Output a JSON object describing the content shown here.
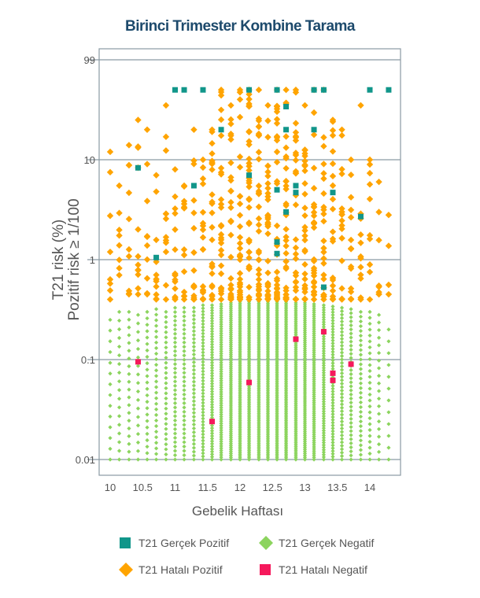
{
  "chart_data": {
    "type": "scatter",
    "title": "Birinci Trimester Kombine Tarama",
    "xlabel": "Gebelik Haftası",
    "ylabel": [
      "T21 risk (%)",
      "Pozitif risk ≥ 1/100"
    ],
    "y_scale": "log",
    "xlim": [
      9.92,
      14.48
    ],
    "ylim": [
      0.0067,
      180
    ],
    "x_ticks": [
      10,
      10.5,
      11,
      11.5,
      12,
      12.5,
      13,
      13.5,
      14
    ],
    "x_tick_labels": [
      "10",
      "10.5",
      "11",
      "11.5",
      "12",
      "12.5",
      "13",
      "13.5",
      "14"
    ],
    "y_ticks": [
      99,
      10,
      1,
      0.1,
      0.01
    ],
    "y_tick_labels": [
      "99",
      "10",
      "1",
      "0.1",
      "0.01"
    ],
    "grid": "horizontal",
    "legend_placement": "bottom",
    "series": [
      {
        "name": "T21 Gerçek Pozitif",
        "color": "#11968a",
        "marker": "square",
        "points": [
          [
            11.0,
            50
          ],
          [
            11.14,
            50
          ],
          [
            11.43,
            50
          ],
          [
            12.14,
            50
          ],
          [
            12.57,
            50
          ],
          [
            13.14,
            50
          ],
          [
            13.29,
            50
          ],
          [
            14.0,
            50
          ],
          [
            14.29,
            50
          ],
          [
            12.71,
            34
          ],
          [
            11.71,
            20
          ],
          [
            12.71,
            20
          ],
          [
            13.14,
            20
          ],
          [
            10.43,
            8.3
          ],
          [
            11.29,
            5.5
          ],
          [
            12.14,
            7
          ],
          [
            12.57,
            5
          ],
          [
            12.86,
            5.5
          ],
          [
            12.86,
            4.7
          ],
          [
            12.71,
            3
          ],
          [
            13.43,
            4.7
          ],
          [
            13.86,
            2.7
          ],
          [
            12.57,
            1.5
          ],
          [
            12.57,
            1.15
          ],
          [
            10.71,
            1.05
          ],
          [
            13.29,
            0.53
          ]
        ]
      },
      {
        "name": "T21 Gerçek Negatif",
        "color": "#8cd45e",
        "marker": "diamond",
        "columns_min_max_count": [
          [
            10.0,
            0.01,
            0.25,
            14
          ],
          [
            10.14,
            0.01,
            0.3,
            18
          ],
          [
            10.29,
            0.01,
            0.3,
            20
          ],
          [
            10.43,
            0.01,
            0.28,
            18
          ],
          [
            10.57,
            0.01,
            0.3,
            24
          ],
          [
            10.71,
            0.01,
            0.32,
            28
          ],
          [
            10.86,
            0.01,
            0.3,
            30
          ],
          [
            11.0,
            0.01,
            0.33,
            36
          ],
          [
            11.14,
            0.01,
            0.33,
            36
          ],
          [
            11.29,
            0.01,
            0.33,
            40
          ],
          [
            11.43,
            0.01,
            0.35,
            50
          ],
          [
            11.57,
            0.01,
            0.35,
            60
          ],
          [
            11.71,
            0.01,
            0.36,
            70
          ],
          [
            11.86,
            0.01,
            0.37,
            80
          ],
          [
            12.0,
            0.01,
            0.38,
            90
          ],
          [
            12.14,
            0.01,
            0.38,
            90
          ],
          [
            12.29,
            0.01,
            0.38,
            90
          ],
          [
            12.43,
            0.01,
            0.38,
            90
          ],
          [
            12.57,
            0.01,
            0.38,
            90
          ],
          [
            12.71,
            0.01,
            0.38,
            90
          ],
          [
            12.86,
            0.01,
            0.37,
            85
          ],
          [
            13.0,
            0.01,
            0.37,
            80
          ],
          [
            13.14,
            0.01,
            0.36,
            75
          ],
          [
            13.29,
            0.01,
            0.35,
            65
          ],
          [
            13.43,
            0.01,
            0.34,
            55
          ],
          [
            13.57,
            0.01,
            0.33,
            45
          ],
          [
            13.71,
            0.01,
            0.32,
            38
          ],
          [
            13.86,
            0.01,
            0.3,
            32
          ],
          [
            14.0,
            0.01,
            0.3,
            26
          ],
          [
            14.14,
            0.01,
            0.28,
            20
          ],
          [
            14.29,
            0.01,
            0.2,
            12
          ]
        ]
      },
      {
        "name": "T21 Hatalı Pozitif",
        "color": "#ffa400",
        "marker": "diamond",
        "columns_min_max_count": [
          [
            10.0,
            0.4,
            12,
            8
          ],
          [
            10.14,
            0.7,
            5.5,
            8
          ],
          [
            10.29,
            0.45,
            14,
            10
          ],
          [
            10.43,
            0.45,
            25,
            12
          ],
          [
            10.57,
            0.45,
            20,
            10
          ],
          [
            10.71,
            0.4,
            7,
            12
          ],
          [
            10.86,
            0.4,
            35,
            12
          ],
          [
            11.0,
            0.4,
            8,
            15
          ],
          [
            11.14,
            0.4,
            5.5,
            14
          ],
          [
            11.29,
            0.4,
            20,
            18
          ],
          [
            11.43,
            0.4,
            10,
            18
          ],
          [
            11.57,
            0.4,
            20,
            25
          ],
          [
            11.71,
            0.4,
            50,
            28
          ],
          [
            11.86,
            0.4,
            35,
            30
          ],
          [
            12.0,
            0.4,
            50,
            35
          ],
          [
            12.14,
            0.4,
            50,
            35
          ],
          [
            12.29,
            0.4,
            50,
            35
          ],
          [
            12.43,
            0.4,
            35,
            35
          ],
          [
            12.57,
            0.4,
            50,
            35
          ],
          [
            12.71,
            0.4,
            50,
            35
          ],
          [
            12.86,
            0.4,
            50,
            30
          ],
          [
            13.0,
            0.4,
            35,
            30
          ],
          [
            13.14,
            0.4,
            50,
            28
          ],
          [
            13.29,
            0.4,
            50,
            25
          ],
          [
            13.43,
            0.4,
            25,
            22
          ],
          [
            13.57,
            0.4,
            20,
            18
          ],
          [
            13.71,
            0.4,
            10,
            14
          ],
          [
            13.86,
            0.4,
            35,
            12
          ],
          [
            14.0,
            0.4,
            10,
            10
          ],
          [
            14.14,
            0.45,
            6,
            8
          ],
          [
            14.29,
            0.45,
            2.8,
            4
          ]
        ]
      },
      {
        "name": "T21 Hatalı Negatif",
        "color": "#f5195c",
        "marker": "square",
        "points": [
          [
            10.43,
            0.095
          ],
          [
            11.57,
            0.024
          ],
          [
            12.14,
            0.059
          ],
          [
            12.86,
            0.16
          ],
          [
            13.29,
            0.19
          ],
          [
            13.43,
            0.073
          ],
          [
            13.43,
            0.062
          ],
          [
            13.71,
            0.09
          ]
        ]
      }
    ],
    "legend_order": [
      0,
      1,
      2,
      3
    ]
  }
}
